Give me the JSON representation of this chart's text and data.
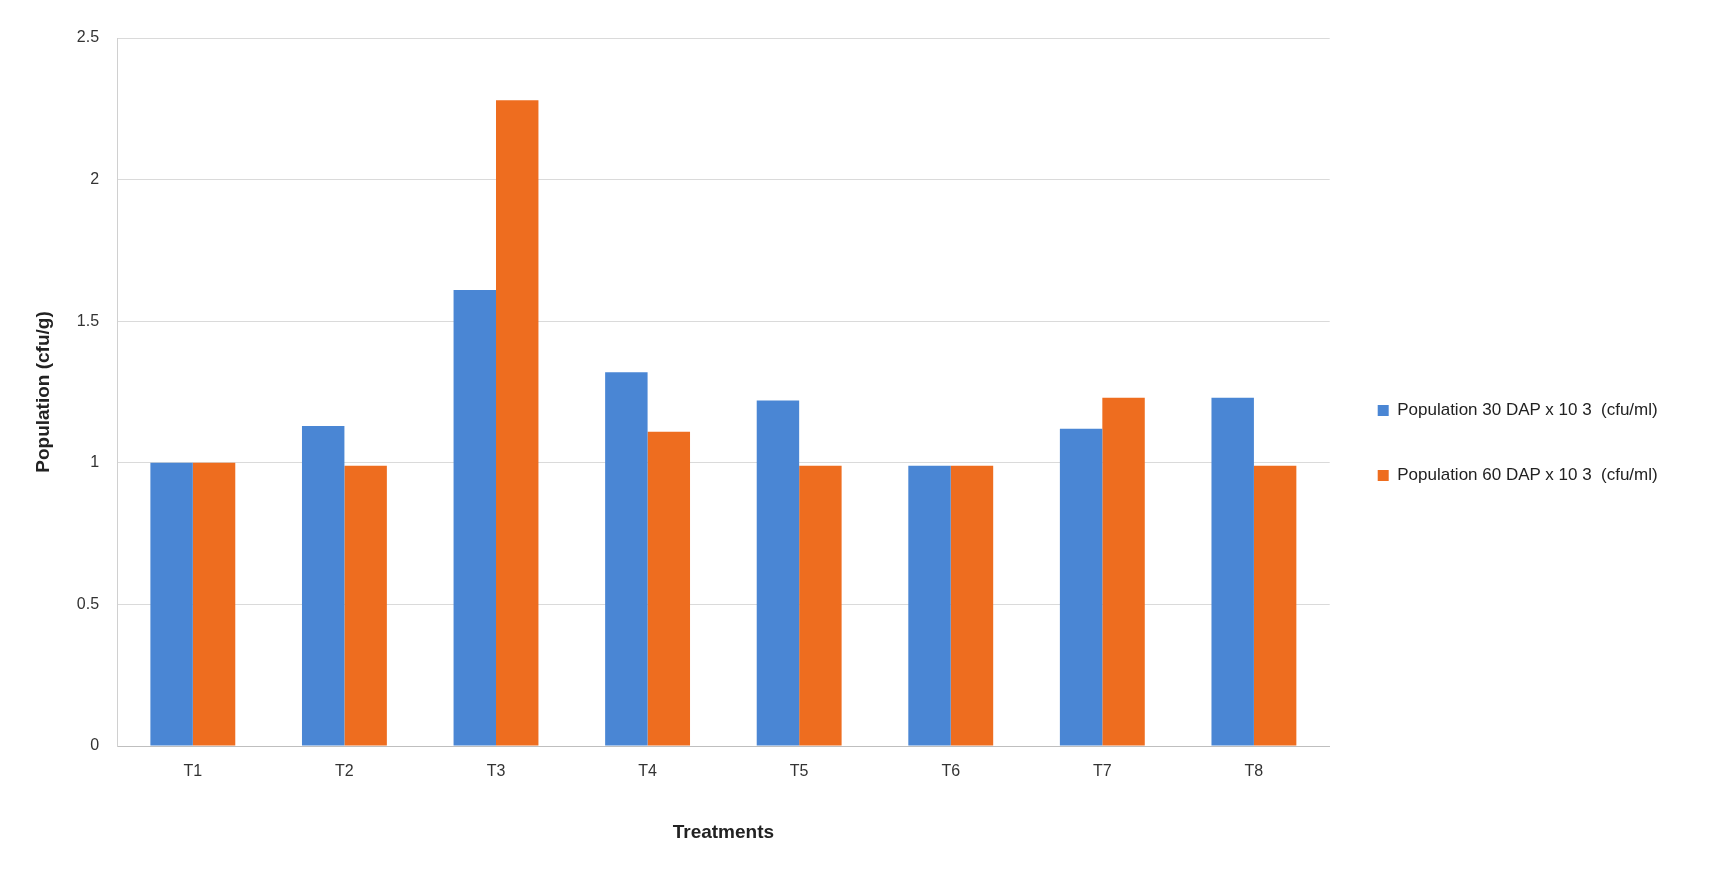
{
  "chart_data": {
    "type": "bar",
    "xlabel": "Treatments",
    "ylabel": "Population (cfu/g)",
    "categories": [
      "T1",
      "T2",
      "T3",
      "T4",
      "T5",
      "T6",
      "T7",
      "T8"
    ],
    "series": [
      {
        "name": "Population 30 DAP x 10 3  (cfu/ml)",
        "color": "#4a86d4",
        "values": [
          1.0,
          1.13,
          1.61,
          1.32,
          1.22,
          0.99,
          1.12,
          1.23
        ]
      },
      {
        "name": "Population 60 DAP x 10 3  (cfu/ml)",
        "color": "#ee6d1f",
        "values": [
          1.0,
          0.99,
          2.28,
          1.11,
          0.99,
          0.99,
          1.23,
          0.99
        ]
      }
    ],
    "ylim": [
      0,
      2.5
    ],
    "yticks": [
      0,
      0.5,
      1,
      1.5,
      2,
      2.5
    ],
    "grid": "y",
    "legend": "right"
  }
}
